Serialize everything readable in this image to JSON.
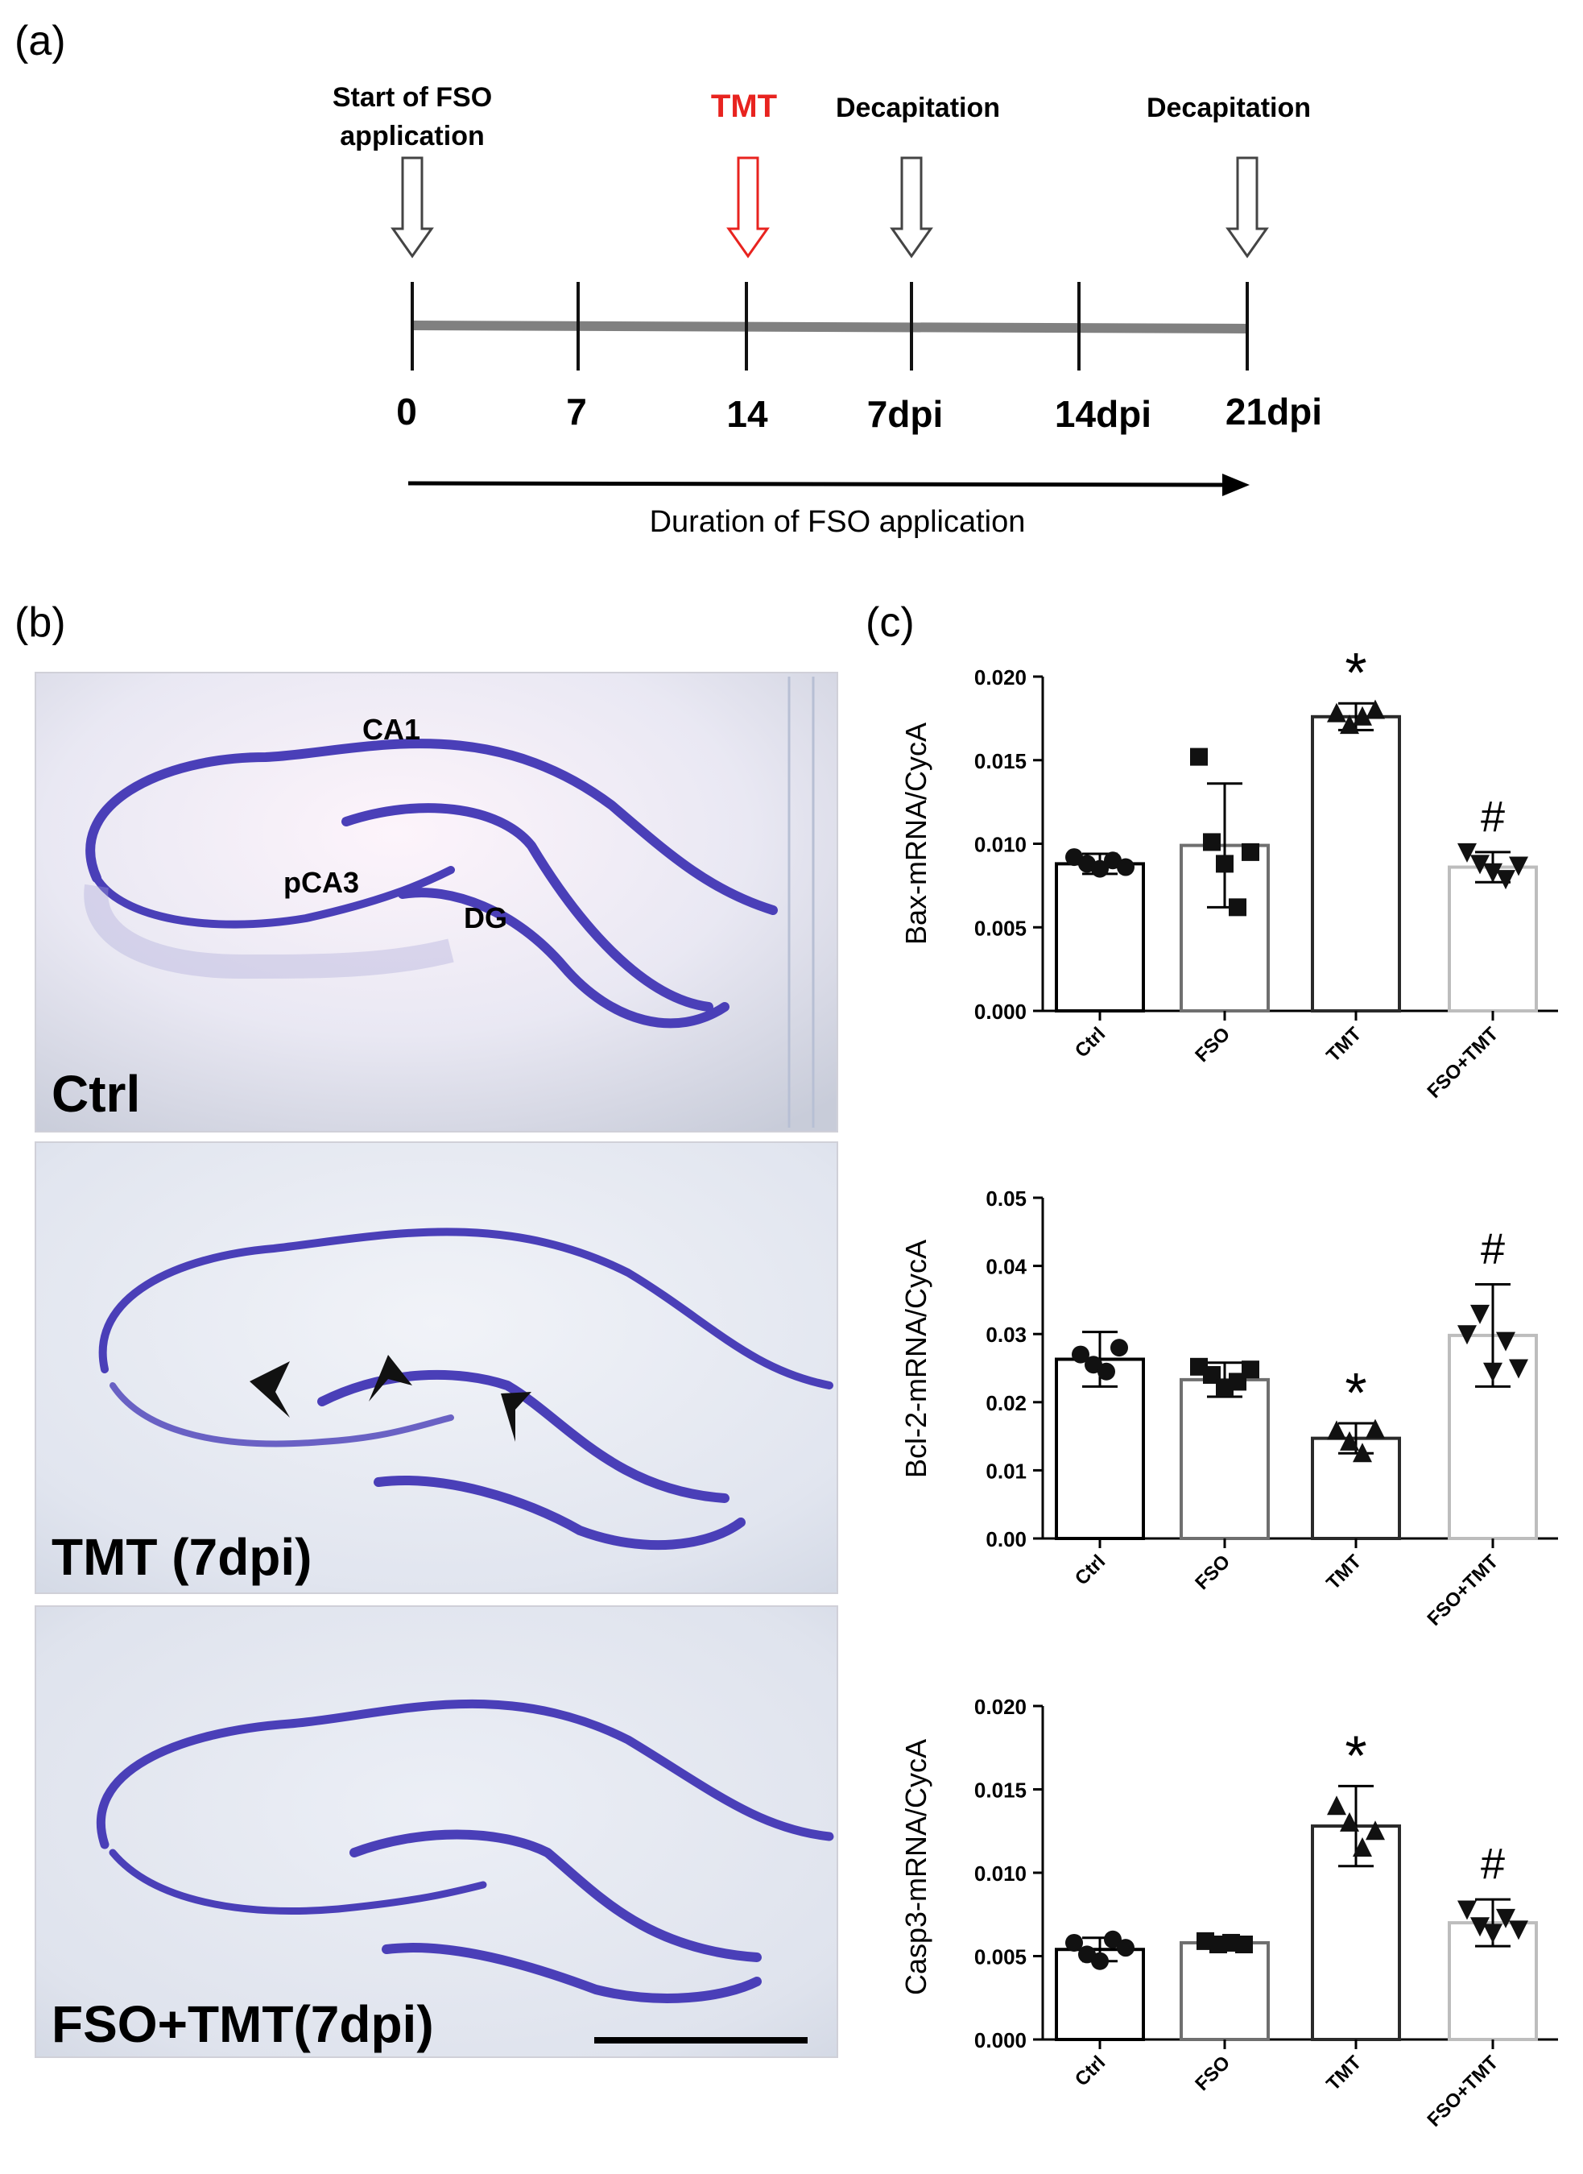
{
  "panel_a": {
    "label": "(a)",
    "events": [
      {
        "text_lines": [
          "Start of FSO",
          "application"
        ],
        "color": "#000000"
      },
      {
        "text_lines": [
          "TMT"
        ],
        "color": "#e8231f"
      },
      {
        "text_lines": [
          "Decapitation"
        ],
        "color": "#000000"
      },
      {
        "text_lines": [
          "Decapitation"
        ],
        "color": "#000000"
      }
    ],
    "ticks": [
      "0",
      "7",
      "14",
      "7dpi",
      "14dpi",
      "21dpi"
    ],
    "duration_label": "Duration of FSO application"
  },
  "panel_b": {
    "label": "(b)",
    "images": [
      {
        "label": "Ctrl",
        "region_labels": [
          "CA1",
          "pCA3",
          "DG"
        ]
      },
      {
        "label": "TMT (7dpi)",
        "region_labels": []
      },
      {
        "label": "FSO+TMT(7dpi)",
        "region_labels": []
      }
    ],
    "stain_color": "#4a3fb8"
  },
  "panel_c": {
    "label": "(c)"
  },
  "chart_data": [
    {
      "type": "bar",
      "categories": [
        "Ctrl",
        "FSO",
        "TMT",
        "FSO+TMT"
      ],
      "values": [
        0.0088,
        0.0099,
        0.0176,
        0.0086
      ],
      "errors": [
        0.0006,
        0.0037,
        0.0008,
        0.0009
      ],
      "points": [
        [
          0.0092,
          0.0088,
          0.0085,
          0.009,
          0.0086
        ],
        [
          0.0152,
          0.0101,
          0.0088,
          0.0062,
          0.0095
        ],
        [
          0.0178,
          0.0171,
          0.0176,
          0.018
        ],
        [
          0.0095,
          0.0088,
          0.0083,
          0.0079,
          0.0087
        ]
      ],
      "marker_shapes": [
        "circle",
        "square",
        "triangle-up",
        "triangle-down"
      ],
      "annotations": [
        "",
        "",
        "*",
        "#"
      ],
      "ylabel": "Bax-mRNA/CycA",
      "ylim": [
        0,
        0.02
      ],
      "yticks": [
        "0.000",
        "0.005",
        "0.010",
        "0.015",
        "0.020"
      ],
      "bar_edge_colors": [
        "#000000",
        "#6f6f6f",
        "#2a2a2a",
        "#bdbdbd"
      ]
    },
    {
      "type": "bar",
      "categories": [
        "Ctrl",
        "FSO",
        "TMT",
        "FSO+TMT"
      ],
      "values": [
        0.0263,
        0.0233,
        0.0147,
        0.0298
      ],
      "errors": [
        0.004,
        0.0025,
        0.0022,
        0.0075
      ],
      "points": [
        [
          0.027,
          0.0255,
          0.0245,
          0.028
        ],
        [
          0.0252,
          0.024,
          0.0221,
          0.023,
          0.0248
        ],
        [
          0.0158,
          0.0142,
          0.0125,
          0.016
        ],
        [
          0.03,
          0.033,
          0.0245,
          0.029,
          0.025
        ]
      ],
      "marker_shapes": [
        "circle",
        "square",
        "triangle-up",
        "triangle-down"
      ],
      "annotations": [
        "",
        "",
        "*",
        "#"
      ],
      "ylabel": "Bcl-2-mRNA/CycA",
      "ylim": [
        0,
        0.05
      ],
      "yticks": [
        "0.00",
        "0.01",
        "0.02",
        "0.03",
        "0.04",
        "0.05"
      ],
      "bar_edge_colors": [
        "#000000",
        "#6f6f6f",
        "#2a2a2a",
        "#bdbdbd"
      ]
    },
    {
      "type": "bar",
      "categories": [
        "Ctrl",
        "FSO",
        "TMT",
        "FSO+TMT"
      ],
      "values": [
        0.0054,
        0.0058,
        0.0128,
        0.007
      ],
      "errors": [
        0.0007,
        0.0002,
        0.0024,
        0.0014
      ],
      "points": [
        [
          0.0058,
          0.0051,
          0.0047,
          0.006,
          0.0055
        ],
        [
          0.0059,
          0.0057,
          0.0058,
          0.0057
        ],
        [
          0.014,
          0.013,
          0.0115,
          0.0125
        ],
        [
          0.0078,
          0.0068,
          0.0064,
          0.0073,
          0.0066
        ]
      ],
      "marker_shapes": [
        "circle",
        "square",
        "triangle-up",
        "triangle-down"
      ],
      "annotations": [
        "",
        "",
        "*",
        "#"
      ],
      "ylabel": "Casp3-mRNA/CycA",
      "ylim": [
        0,
        0.02
      ],
      "yticks": [
        "0.000",
        "0.005",
        "0.010",
        "0.015",
        "0.020"
      ],
      "bar_edge_colors": [
        "#000000",
        "#6f6f6f",
        "#2a2a2a",
        "#bdbdbd"
      ]
    }
  ]
}
